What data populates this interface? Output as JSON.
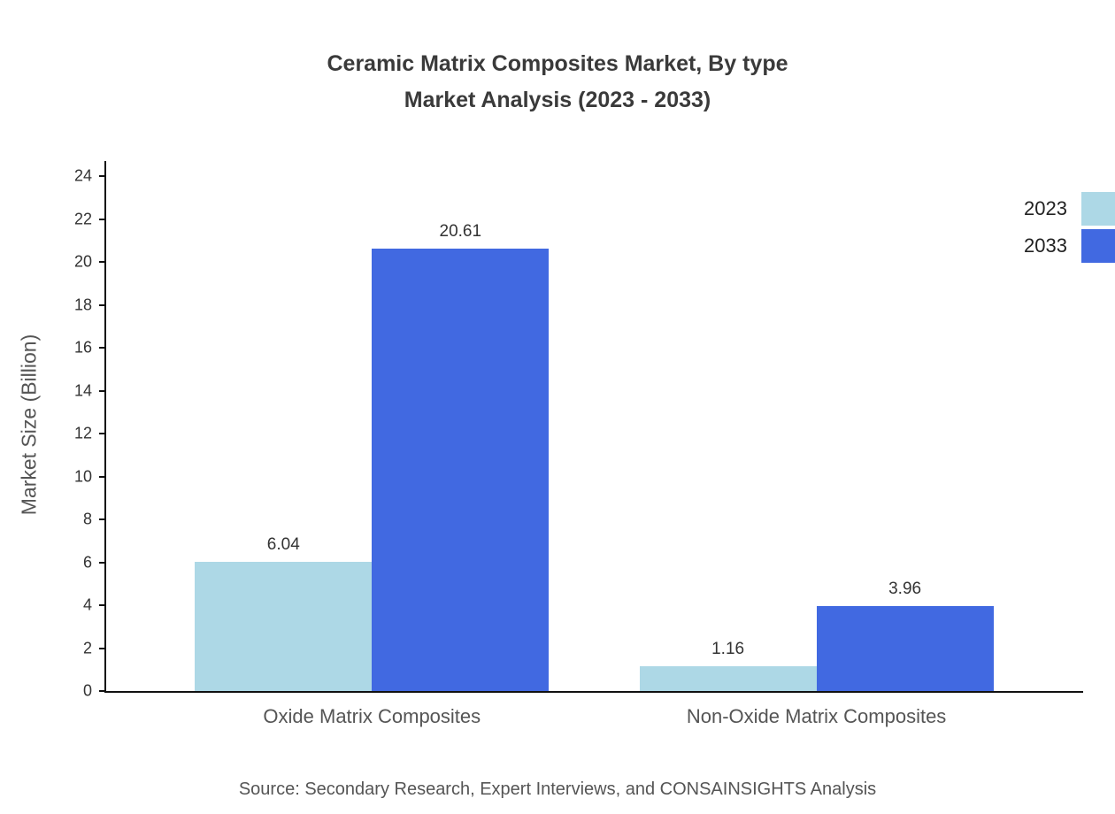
{
  "title": {
    "line1": "Ceramic Matrix Composites Market, By type",
    "line2": "Market Analysis (2023 - 2033)"
  },
  "source": "Source: Secondary Research, Expert Interviews, and CONSAINSIGHTS Analysis",
  "chart_data": {
    "type": "bar",
    "title": "Ceramic Matrix Composites Market, By type",
    "subtitle": "Market Analysis (2023 - 2033)",
    "categories": [
      "Oxide Matrix Composites",
      "Non-Oxide Matrix Composites"
    ],
    "series": [
      {
        "name": "2023",
        "color": "#add8e6",
        "values": [
          6.04,
          1.16
        ]
      },
      {
        "name": "2033",
        "color": "#4169e1",
        "values": [
          20.61,
          3.96
        ]
      }
    ],
    "xlabel": "",
    "ylabel": "Market Size (Billion)",
    "ylim": [
      0,
      24
    ],
    "ytick_step": 2,
    "grid": false,
    "legend_position": "top-right",
    "value_labels": true
  }
}
